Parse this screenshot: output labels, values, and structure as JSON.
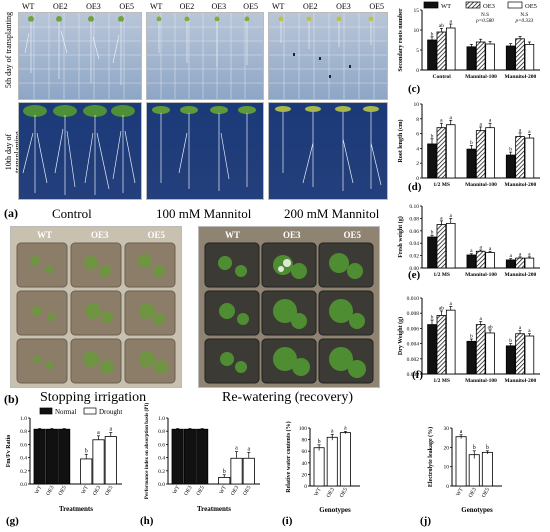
{
  "panel_a": {
    "col_labels": [
      "WT",
      "OE2",
      "OE3",
      "OE5"
    ],
    "row_labels": [
      "5th day of transplanting",
      "10th day of transplanting"
    ],
    "captions": [
      "Control",
      "100 mM Mannitol",
      "200 mM Mannitol"
    ],
    "letter": "(a)"
  },
  "panel_b": {
    "col_labels": [
      "WT",
      "OE3",
      "OE5"
    ],
    "captions": [
      "Stopping irrigation",
      "Re-watering (recovery)"
    ],
    "letter": "(b)"
  },
  "chart_data": [
    {
      "id": "c",
      "type": "bar",
      "letter": "(c)",
      "ylabel": "Secondary roots number",
      "ylim": [
        0,
        15
      ],
      "yticks": [
        0,
        5,
        10,
        15
      ],
      "categories": [
        "Control",
        "Mannitol-100",
        "Mannitol-200"
      ],
      "series": [
        {
          "name": "WT",
          "pattern": "solid",
          "values": [
            7.5,
            5.8,
            6.0
          ],
          "err": [
            0.8,
            0.6,
            0.6
          ]
        },
        {
          "name": "OE3",
          "pattern": "hatch",
          "values": [
            9.5,
            7.0,
            7.8
          ],
          "err": [
            0.9,
            0.7,
            0.6
          ]
        },
        {
          "name": "OE5",
          "pattern": "white",
          "values": [
            10.5,
            6.5,
            6.4
          ],
          "err": [
            1.0,
            0.6,
            0.6
          ]
        }
      ],
      "sig": [
        [
          "b",
          "ab",
          "a"
        ],
        [
          "",
          "",
          ""
        ],
        [
          "",
          "",
          ""
        ]
      ],
      "annotations": [
        "N.S",
        "p=0.580",
        "N.S",
        "p=0.333"
      ]
    },
    {
      "id": "d",
      "type": "bar",
      "letter": "(d)",
      "ylabel": "Root length (cm)",
      "ylim": [
        0,
        10
      ],
      "yticks": [
        0,
        2,
        4,
        6,
        8,
        10
      ],
      "categories": [
        "1/2 MS",
        "Mannitol-100",
        "Mannitol-200"
      ],
      "series": [
        {
          "name": "WT",
          "pattern": "solid",
          "values": [
            4.6,
            3.9,
            3.1
          ],
          "err": [
            0.7,
            0.5,
            0.4
          ]
        },
        {
          "name": "OE3",
          "pattern": "hatch",
          "values": [
            6.8,
            6.4,
            5.6
          ],
          "err": [
            0.6,
            0.5,
            0.5
          ]
        },
        {
          "name": "OE5",
          "pattern": "white",
          "values": [
            7.2,
            6.8,
            5.4
          ],
          "err": [
            0.6,
            0.6,
            0.5
          ]
        }
      ],
      "sig": [
        [
          "b",
          "a",
          "a"
        ],
        [
          "b",
          "a",
          "a"
        ],
        [
          "b",
          "a",
          "a"
        ]
      ]
    },
    {
      "id": "e",
      "type": "bar",
      "letter": "(e)",
      "ylabel": "Fresh weight (g)",
      "ylim": [
        0,
        0.1
      ],
      "yticks": [
        0,
        0.02,
        0.04,
        0.06,
        0.08,
        0.1
      ],
      "ytick_labels": [
        "0.00",
        "0.02",
        "0.04",
        "0.06",
        "0.08",
        "0.10"
      ],
      "categories": [
        "1/2 MS",
        "Mannitol-100",
        "Mannitol-200"
      ],
      "series": [
        {
          "name": "WT",
          "pattern": "solid",
          "values": [
            0.05,
            0.021,
            0.013
          ],
          "err": [
            0.003,
            0.002,
            0.002
          ]
        },
        {
          "name": "OE3",
          "pattern": "hatch",
          "values": [
            0.07,
            0.027,
            0.016
          ],
          "err": [
            0.006,
            0.002,
            0.002
          ]
        },
        {
          "name": "OE5",
          "pattern": "white",
          "values": [
            0.072,
            0.025,
            0.016
          ],
          "err": [
            0.008,
            0.002,
            0.002
          ]
        }
      ],
      "sig": [
        [
          "b",
          "a",
          "a"
        ],
        [
          "a",
          "a",
          "a"
        ],
        [
          "a",
          "a",
          "a"
        ]
      ]
    },
    {
      "id": "f",
      "type": "bar",
      "letter": "(f)",
      "ylabel": "Dry Weight (g)",
      "ylim": [
        0,
        0.01
      ],
      "yticks": [
        0,
        0.002,
        0.004,
        0.006,
        0.008,
        0.01
      ],
      "ytick_labels": [
        "0.000",
        "0.002",
        "0.004",
        "0.006",
        "0.008",
        "0.010"
      ],
      "categories": [
        "1/2 MS",
        "Mannitol-100",
        "Mannitol-200"
      ],
      "series": [
        {
          "name": "WT",
          "pattern": "solid",
          "values": [
            0.0065,
            0.0043,
            0.0037
          ],
          "err": [
            0.0006,
            0.0003,
            0.0003
          ]
        },
        {
          "name": "OE3",
          "pattern": "hatch",
          "values": [
            0.0077,
            0.0065,
            0.0053
          ],
          "err": [
            0.0006,
            0.0004,
            0.0004
          ]
        },
        {
          "name": "OE5",
          "pattern": "white",
          "values": [
            0.0084,
            0.0054,
            0.005
          ],
          "err": [
            0.0005,
            0.0004,
            0.0003
          ]
        }
      ],
      "sig": [
        [
          "b",
          "ab",
          "a"
        ],
        [
          "b",
          "a",
          "ab"
        ],
        [
          "b",
          "a",
          "a"
        ]
      ]
    },
    {
      "id": "g",
      "type": "bar",
      "letter": "(g)",
      "ylabel": "Fm/Fv Ratio",
      "xlabel": "Treatments",
      "ylim": [
        0,
        1.0
      ],
      "yticks": [
        0,
        0.2,
        0.4,
        0.6,
        0.8,
        1.0
      ],
      "ytick_labels": [
        "0.0",
        "0.2",
        "0.4",
        "0.6",
        "0.8",
        "1.0"
      ],
      "categories": [
        "WT",
        "OE3",
        "OE5",
        "WT",
        "OE3",
        "OE5"
      ],
      "series": [
        {
          "name": "Normal",
          "pattern": "solid",
          "values": [
            0.83,
            0.83,
            0.83,
            null,
            null,
            null
          ],
          "err": [
            0.01,
            0.01,
            0.01,
            null,
            null,
            null
          ]
        },
        {
          "name": "Drought",
          "pattern": "white",
          "values": [
            null,
            null,
            null,
            0.38,
            0.67,
            0.72
          ],
          "err": [
            null,
            null,
            null,
            0.07,
            0.06,
            0.06
          ]
        }
      ],
      "sig": [
        "",
        "",
        "",
        "b",
        "a",
        "a"
      ]
    },
    {
      "id": "h",
      "type": "bar",
      "letter": "(h)",
      "ylabel": "Performance index on absorption basis (PI)",
      "xlabel": "Treatments",
      "ylim": [
        0,
        1.0
      ],
      "yticks": [
        0,
        0.2,
        0.4,
        0.6,
        0.8,
        1.0
      ],
      "ytick_labels": [
        "0.0",
        "0.2",
        "0.4",
        "0.6",
        "0.8",
        "1.0"
      ],
      "categories": [
        "WT",
        "OE3",
        "OE5",
        "WT",
        "OE3",
        "OE5"
      ],
      "series": [
        {
          "name": "Normal",
          "pattern": "solid",
          "values": [
            0.83,
            0.83,
            0.83,
            null,
            null,
            null
          ],
          "err": [
            0.01,
            0.01,
            0.01,
            null,
            null,
            null
          ]
        },
        {
          "name": "Drought",
          "pattern": "white",
          "values": [
            null,
            null,
            null,
            0.1,
            0.39,
            0.39
          ],
          "err": [
            null,
            null,
            null,
            0.04,
            0.1,
            0.09
          ]
        }
      ],
      "sig": [
        "",
        "",
        "",
        "b",
        "a",
        "a"
      ]
    },
    {
      "id": "i",
      "type": "bar",
      "letter": "(i)",
      "ylabel": "Relative water contents (%)",
      "xlabel": "Genotypes",
      "ylim": [
        0,
        100
      ],
      "yticks": [
        0,
        20,
        40,
        60,
        80,
        100
      ],
      "categories": [
        "WT",
        "OE3",
        "OE5"
      ],
      "series": [
        {
          "name": "",
          "pattern": "white",
          "values": [
            66,
            84,
            92
          ],
          "err": [
            5,
            5,
            2
          ]
        }
      ],
      "sig": [
        "b",
        "a",
        "a"
      ]
    },
    {
      "id": "j",
      "type": "bar",
      "letter": "(j)",
      "ylabel": "Electrolyte leakage (%)",
      "xlabel": "Genotypes",
      "ylim": [
        0,
        30
      ],
      "yticks": [
        0,
        10,
        20,
        30
      ],
      "categories": [
        "WT",
        "OE3",
        "OE5"
      ],
      "series": [
        {
          "name": "",
          "pattern": "white",
          "values": [
            25.5,
            16.2,
            17.4
          ],
          "err": [
            1.0,
            2.0,
            0.8
          ]
        }
      ],
      "sig": [
        "a",
        "b",
        "b"
      ]
    }
  ],
  "legend_top": [
    "WT",
    "OE3",
    "OE5"
  ],
  "legend_gh": [
    "Normal",
    "Drought"
  ],
  "colors": {
    "bar_solid": "#111111",
    "bar_white": "#ffffff",
    "stroke": "#000000",
    "petri_bg": "#9fb1cc",
    "petri_dark": "#1e3b7a",
    "soil": "#8a7e6c",
    "leaf": "#3d7a2a"
  }
}
